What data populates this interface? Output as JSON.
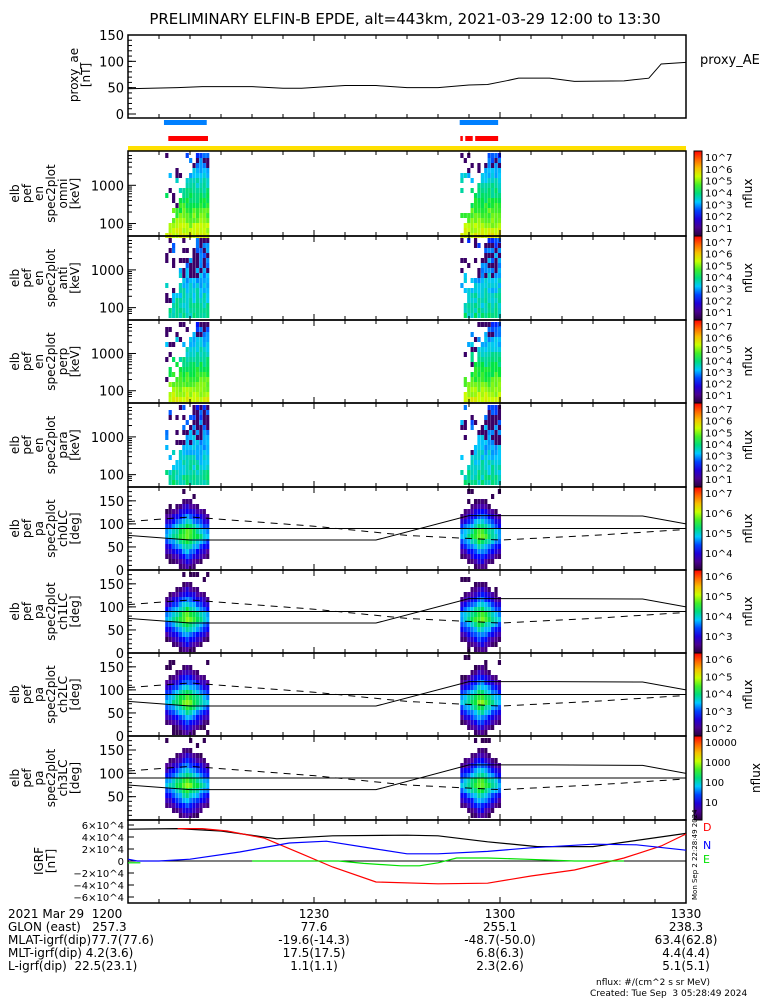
{
  "title": "PRELIMINARY ELFIN-B EPDE, alt=443km, 2021-03-29 12:00 to 13:30",
  "colors": {
    "blue_bar": "#0080ff",
    "red_bar": "#ff0000",
    "yellow_bar": "#ffe000",
    "igrf_D": "#ff0000",
    "igrf_N": "#0000ff",
    "igrf_E": "#00e000",
    "igrf_total": "#000000"
  },
  "time_axis": {
    "start_min": 0,
    "end_min": 90,
    "labels": [
      "1200",
      "1230",
      "1300",
      "1330"
    ],
    "label_min": [
      0,
      30,
      60,
      90
    ]
  },
  "proxy_ae": {
    "ylabel": "proxy_ae",
    "units": "[nT]",
    "legend": "proxy_AE",
    "ylim": [
      0,
      150
    ],
    "yticks": [
      "0",
      "50",
      "100",
      "150"
    ],
    "t": [
      0,
      8,
      12,
      20,
      25,
      28,
      35,
      40,
      45,
      50,
      55,
      58,
      61,
      63,
      68,
      72,
      80,
      84,
      86,
      90
    ],
    "v": [
      48,
      50,
      52,
      52,
      49,
      49,
      54,
      54,
      50,
      50,
      55,
      56,
      63,
      68,
      68,
      62,
      63,
      68,
      95,
      98
    ]
  },
  "bars": {
    "blue": [
      [
        5.8,
        12.7
      ],
      [
        53.5,
        59.7
      ]
    ],
    "red": [
      [
        6.5,
        12.9
      ],
      [
        53.6,
        54
      ],
      [
        54.4,
        55.6
      ],
      [
        56,
        59.7
      ]
    ],
    "yellow": [
      [
        0,
        90
      ]
    ]
  },
  "panels": [
    {
      "lines": [
        "elb",
        "pef",
        "en",
        "spec2plot",
        "omni",
        "[keV]"
      ],
      "type": "en",
      "yticks": [
        "100",
        "1000"
      ],
      "cbar": [
        "10^7",
        "10^6",
        "10^5",
        "10^4",
        "10^3",
        "10^2",
        "10^1"
      ],
      "cbar_label": "nflux"
    },
    {
      "lines": [
        "elb",
        "pef",
        "en",
        "spec2plot",
        "anti",
        "[keV]"
      ],
      "type": "en",
      "yticks": [
        "100",
        "1000"
      ],
      "cbar": [
        "10^7",
        "10^6",
        "10^5",
        "10^4",
        "10^3",
        "10^2",
        "10^1"
      ],
      "cbar_label": "nflux"
    },
    {
      "lines": [
        "elb",
        "pef",
        "en",
        "spec2plot",
        "perp",
        "[keV]"
      ],
      "type": "en",
      "yticks": [
        "100",
        "1000"
      ],
      "cbar": [
        "10^7",
        "10^6",
        "10^5",
        "10^4",
        "10^3",
        "10^2",
        "10^1"
      ],
      "cbar_label": "nflux"
    },
    {
      "lines": [
        "elb",
        "pef",
        "en",
        "spec2plot",
        "para",
        "[keV]"
      ],
      "type": "en",
      "yticks": [
        "100",
        "1000"
      ],
      "cbar": [
        "10^7",
        "10^6",
        "10^5",
        "10^4",
        "10^3",
        "10^2",
        "10^1"
      ],
      "cbar_label": "nflux"
    },
    {
      "lines": [
        "elb",
        "pef",
        "pa",
        "spec2plot",
        "ch0LC",
        "[deg]"
      ],
      "type": "pa",
      "yticks": [
        "0",
        "50",
        "100",
        "150"
      ],
      "cbar": [
        "10^7",
        "10^6",
        "10^5",
        "10^4"
      ],
      "cbar_label": "nflux"
    },
    {
      "lines": [
        "elb",
        "pef",
        "pa",
        "spec2plot",
        "ch1LC",
        "[deg]"
      ],
      "type": "pa",
      "yticks": [
        "0",
        "50",
        "100",
        "150"
      ],
      "cbar": [
        "10^6",
        "10^5",
        "10^4",
        "10^3"
      ],
      "cbar_label": "nflux"
    },
    {
      "lines": [
        "elb",
        "pef",
        "pa",
        "spec2plot",
        "ch2LC",
        "[deg]"
      ],
      "type": "pa",
      "yticks": [
        "0",
        "50",
        "100",
        "150"
      ],
      "cbar": [
        "10^6",
        "10^5",
        "10^4",
        "10^3",
        "10^2"
      ],
      "cbar_label": "nflux"
    },
    {
      "lines": [
        "elb",
        "pef",
        "pa",
        "spec2plot",
        "ch3LC",
        "[deg]"
      ],
      "type": "pa",
      "yticks": [
        "50",
        "100",
        "150"
      ],
      "cbar": [
        "10000",
        "1000",
        "100",
        "10"
      ],
      "cbar_label": "nflux"
    }
  ],
  "pa_lines": {
    "solid_t": [
      0,
      10,
      40,
      55,
      68,
      83,
      90
    ],
    "solid_v": [
      75,
      65,
      65,
      118,
      118,
      117,
      100
    ],
    "dashed_t": [
      0,
      10,
      30,
      45,
      60,
      75,
      90
    ],
    "dashed_v": [
      105,
      115,
      95,
      75,
      65,
      75,
      88
    ],
    "ref": 90
  },
  "igrf": {
    "ylabel": "IGRF",
    "units": "[nT]",
    "yticks": [
      "6×10^4",
      "4×10^4",
      "2×10^4",
      "0",
      "−2×10^4",
      "−4×10^4",
      "−6×10^4"
    ],
    "ytick_vals": [
      60000,
      40000,
      20000,
      0,
      -20000,
      -40000,
      -60000
    ],
    "legend": [
      "D",
      "N",
      "E"
    ],
    "stamp": "Mon Sep  2 22:28:49 2024",
    "series": [
      {
        "name": "total",
        "t": [
          0,
          8,
          15,
          24,
          33,
          45,
          50,
          58,
          66,
          75,
          90
        ],
        "v": [
          53000,
          54000,
          50000,
          37000,
          42000,
          43000,
          42000,
          32000,
          24000,
          24000,
          46000
        ]
      },
      {
        "name": "D",
        "t": [
          8,
          12,
          16,
          22,
          28,
          33,
          40,
          50,
          58,
          65,
          72,
          80,
          86,
          90
        ],
        "v": [
          54000,
          54000,
          50000,
          38000,
          12000,
          -10000,
          -35000,
          -38000,
          -37000,
          -25000,
          -15000,
          5000,
          25000,
          45000
        ]
      },
      {
        "name": "N",
        "t": [
          0,
          1.5,
          5,
          10,
          18,
          26,
          32,
          40,
          45,
          50,
          58,
          65,
          75,
          82,
          90
        ],
        "v": [
          3000,
          0,
          0,
          3000,
          15000,
          30000,
          33000,
          20000,
          12000,
          12000,
          16000,
          22000,
          28000,
          27000,
          18000
        ]
      },
      {
        "name": "E",
        "t": [
          0,
          2,
          5,
          20,
          30,
          34,
          38,
          44,
          47,
          50,
          53,
          58,
          64,
          72,
          80
        ],
        "v": [
          -3000,
          -3000,
          null,
          0,
          0,
          0,
          -4000,
          -8000,
          -8000,
          -3000,
          5000,
          5000,
          3000,
          0,
          0
        ]
      }
    ]
  },
  "footer": {
    "rows": [
      [
        "2021 Mar 29  1200",
        "1230",
        "1300",
        "1330"
      ],
      [
        "GLON (east)   257.3",
        "77.6",
        "255.1",
        "238.3"
      ],
      [
        "MLAT-igrf(dip)77.7(77.6)",
        "-19.6(-14.3)",
        "-48.7(-50.0)",
        "63.4(62.8)"
      ],
      [
        "MLT-igrf(dip) 4.2(3.6)",
        "17.5(17.5)",
        "6.8(6.3)",
        "4.4(4.4)"
      ],
      [
        "L-igrf(dip)  22.5(23.1)",
        "1.1(1.1)",
        "2.3(2.6)",
        "5.1(5.1)"
      ]
    ],
    "units_note": "nflux: #/(cm^2 s sr MeV)",
    "created": "Created: Tue Sep  3 05:28:49 2024"
  }
}
